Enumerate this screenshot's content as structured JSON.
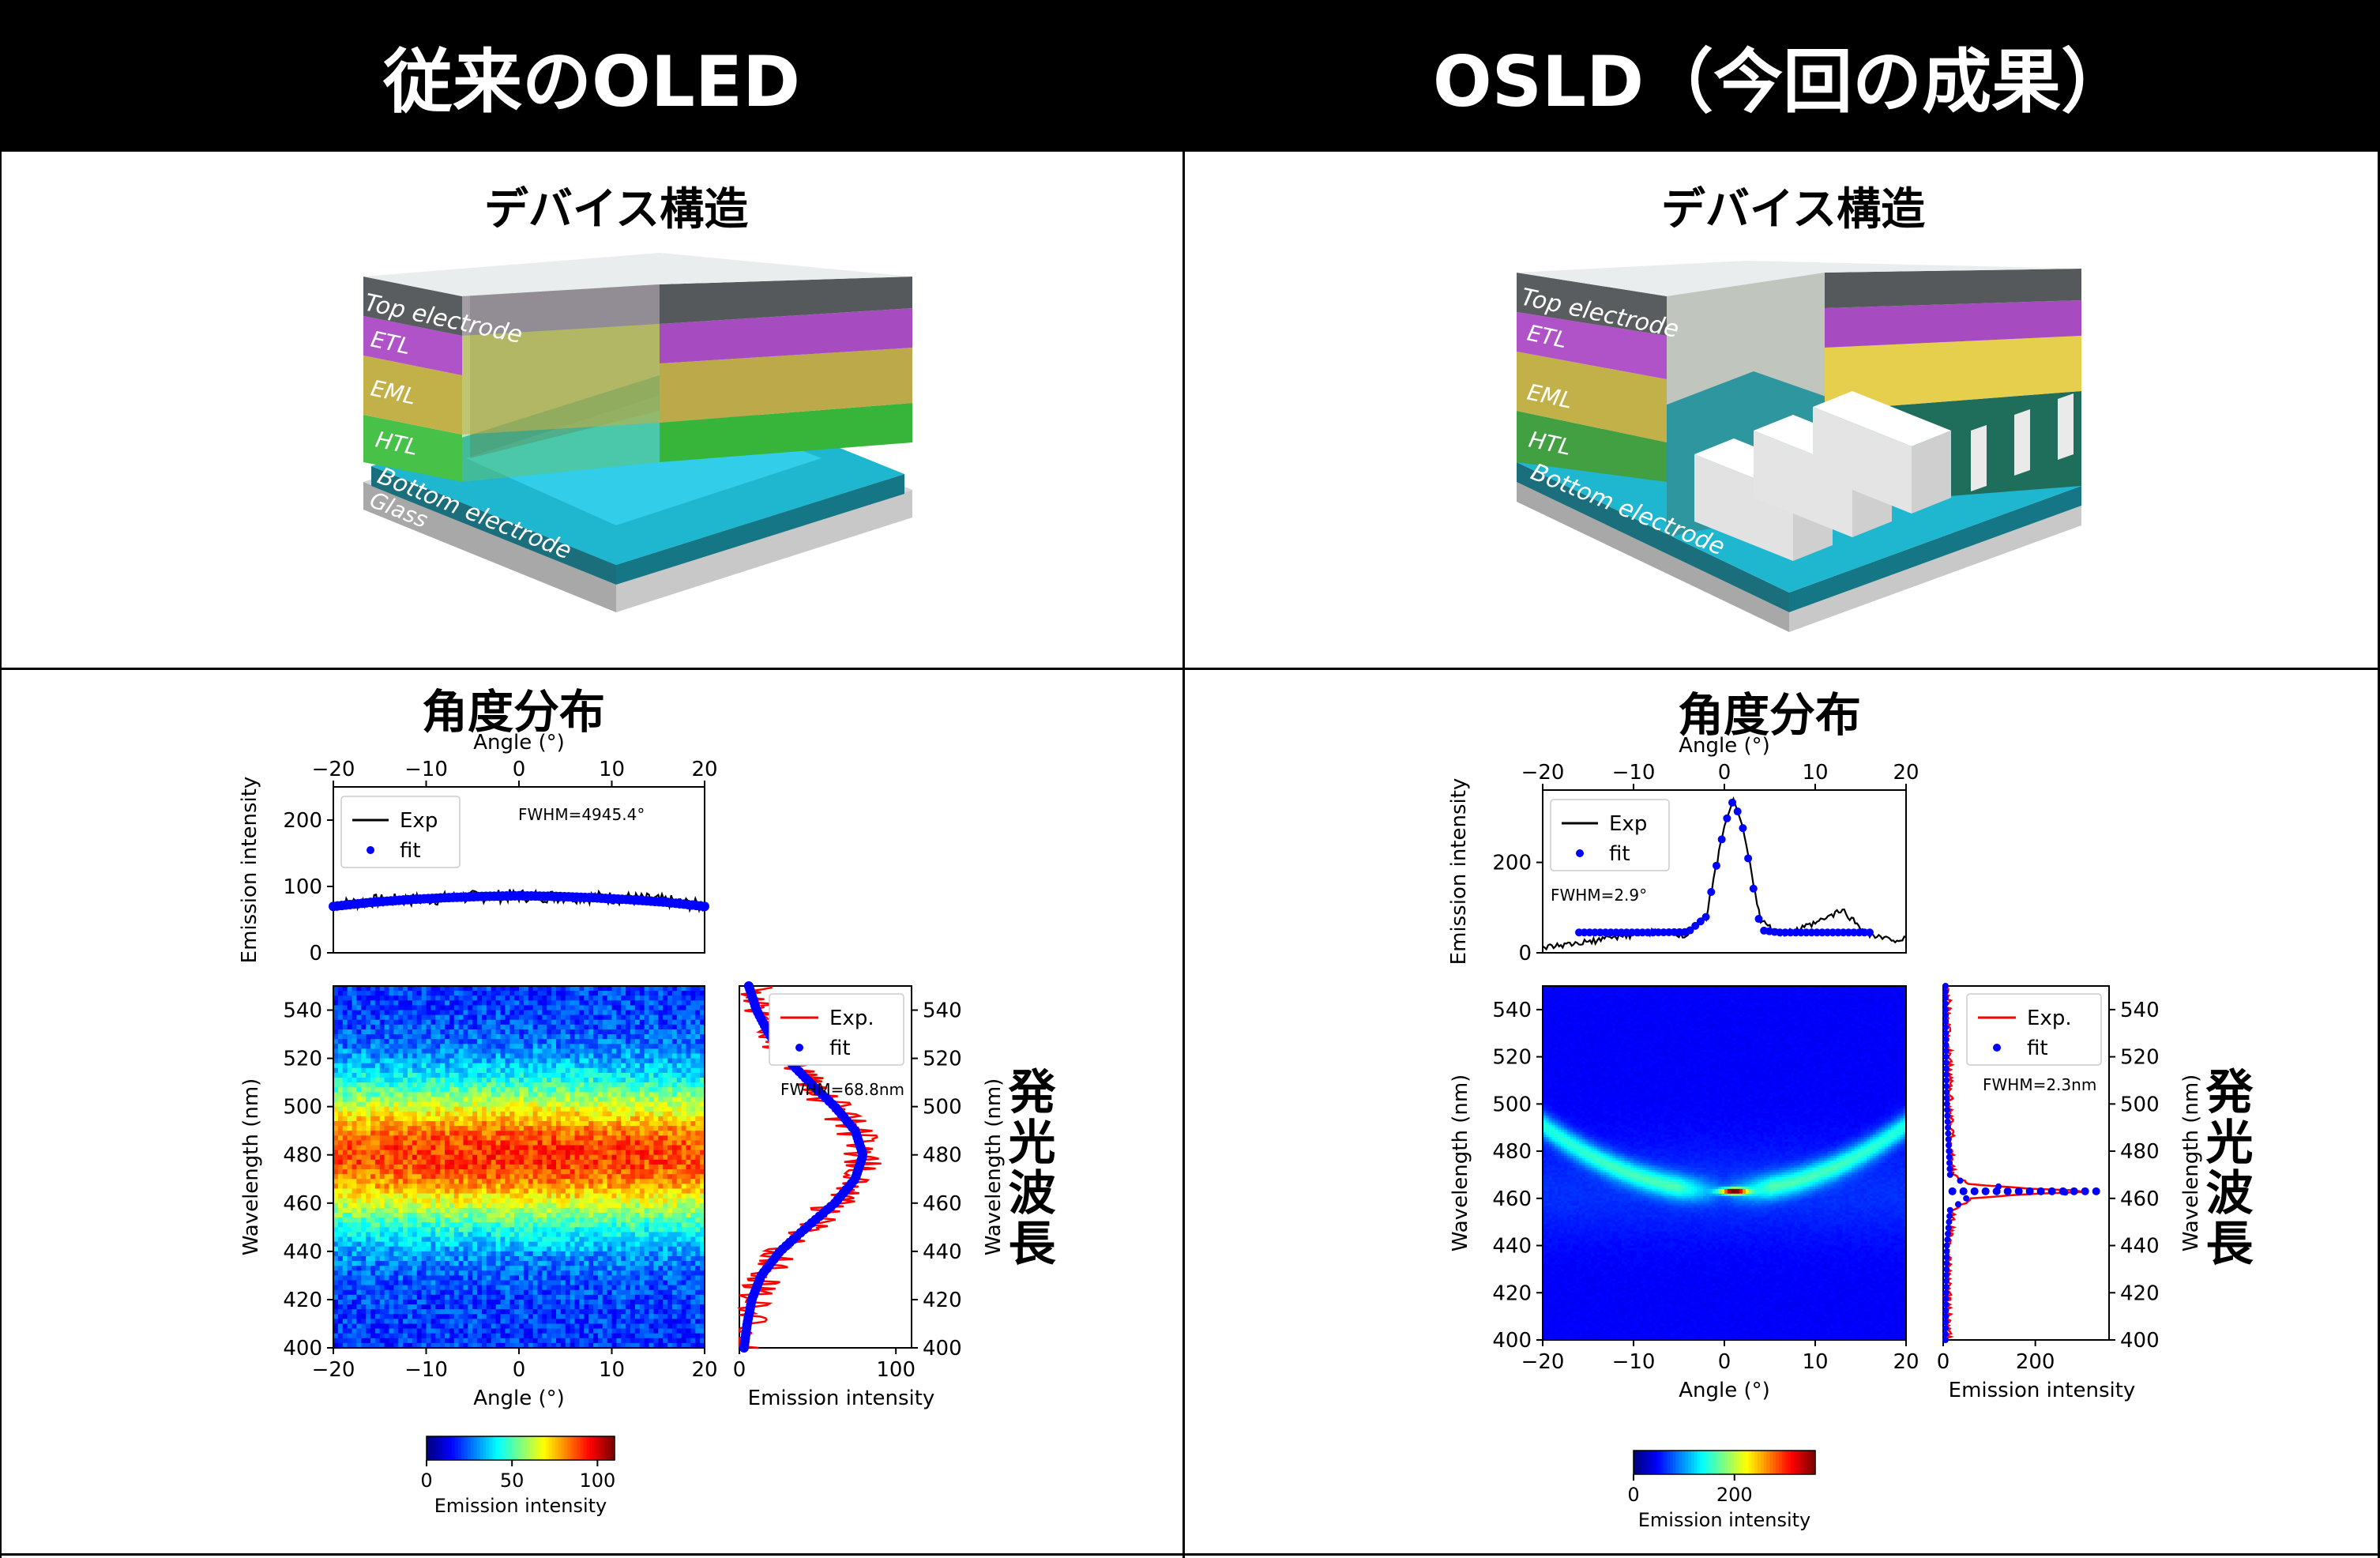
{
  "headers": {
    "left": "従来のOLED",
    "right": "OSLD（今回の成果）"
  },
  "sections": {
    "device": "デバイス構造",
    "angular": "角度分布",
    "emission": "発光波長"
  },
  "device_layers": {
    "oled": [
      "Top electrode",
      "ETL",
      "EML",
      "HTL",
      "Bottom electrode",
      "Glass"
    ],
    "osld": [
      "Top electrode",
      "ETL",
      "EML",
      "HTL",
      "Bottom electrode"
    ]
  },
  "colors": {
    "top": "#5a5d60",
    "etl": "#b052c8",
    "eml": "#c6b348",
    "htl": "#4cc34c",
    "bottom": "#1b6f7c",
    "glass": "#b9b9b9",
    "exp_angle": "#000000",
    "exp_spec": "#ff0000",
    "fit": "#0000ff"
  },
  "chart_data": [
    {
      "type": "line",
      "panel": "oled-angular",
      "xlabel": "Angle (°)",
      "ylabel": "Emission intensity",
      "xlim": [
        -20,
        20
      ],
      "ylim": [
        0,
        250
      ],
      "xticks": [
        "−20",
        "−10",
        "0",
        "10",
        "20"
      ],
      "yticks": [
        "0",
        "100",
        "200"
      ],
      "legend": [
        "Exp",
        "fit"
      ],
      "annotation": "FWHM=4945.4°",
      "series": [
        {
          "name": "Exp",
          "x": [
            -20,
            -16,
            -12,
            -8,
            -4,
            0,
            4,
            8,
            12,
            16,
            20
          ],
          "values": [
            72,
            78,
            80,
            82,
            85,
            86,
            85,
            84,
            82,
            78,
            70
          ]
        },
        {
          "name": "fit",
          "x": [
            -20,
            -16,
            -12,
            -8,
            -4,
            0,
            4,
            8,
            12,
            16,
            20
          ],
          "values": [
            70,
            76,
            80,
            83,
            85,
            86,
            85,
            83,
            80,
            76,
            70
          ]
        }
      ]
    },
    {
      "type": "heatmap",
      "panel": "oled-map",
      "xlabel": "Angle (°)",
      "ylabel": "Wavelength (nm)",
      "xlim": [
        -20,
        20
      ],
      "ylim": [
        400,
        550
      ],
      "xticks": [
        "−20",
        "−10",
        "0",
        "10",
        "20"
      ],
      "yticks": [
        "400",
        "420",
        "440",
        "460",
        "480",
        "500",
        "520",
        "540"
      ],
      "colorbar": {
        "label": "Emission intensity",
        "ticks": [
          "0",
          "50",
          "100"
        ],
        "range": [
          0,
          110
        ]
      },
      "peak_wavelength": 480
    },
    {
      "type": "line",
      "panel": "oled-spectrum",
      "xlabel": "Emission intensity",
      "ylabel": "Wavelength (nm)",
      "xlim": [
        0,
        110
      ],
      "ylim": [
        400,
        550
      ],
      "xticks": [
        "0",
        "100"
      ],
      "yticks": [
        "400",
        "420",
        "440",
        "460",
        "480",
        "500",
        "520",
        "540"
      ],
      "legend": [
        "Exp.",
        "fit"
      ],
      "annotation": "FWHM=68.8nm",
      "series": [
        {
          "name": "Exp.",
          "y": [
            400,
            410,
            420,
            430,
            440,
            450,
            460,
            470,
            480,
            490,
            500,
            510,
            520,
            530,
            540,
            550
          ],
          "values": [
            4,
            5,
            8,
            15,
            28,
            45,
            62,
            75,
            80,
            74,
            60,
            45,
            32,
            22,
            14,
            8
          ]
        },
        {
          "name": "fit",
          "y": [
            400,
            410,
            420,
            430,
            440,
            450,
            460,
            470,
            480,
            490,
            500,
            510,
            520,
            530,
            540,
            550
          ],
          "values": [
            3,
            5,
            8,
            14,
            26,
            43,
            61,
            74,
            79,
            74,
            61,
            45,
            30,
            19,
            11,
            6
          ]
        }
      ]
    },
    {
      "type": "line",
      "panel": "osld-angular",
      "xlabel": "Angle (°)",
      "ylabel": "Emission intensity",
      "xlim": [
        -20,
        20
      ],
      "ylim": [
        0,
        360
      ],
      "xticks": [
        "−20",
        "−10",
        "0",
        "10",
        "20"
      ],
      "yticks": [
        "0",
        "200"
      ],
      "legend": [
        "Exp",
        "fit"
      ],
      "annotation": "FWHM=2.9°",
      "series": [
        {
          "name": "Exp",
          "x": [
            -20,
            -16,
            -12,
            -8,
            -4,
            -2,
            0,
            1,
            2,
            4,
            6,
            8,
            10,
            12,
            13,
            14,
            16,
            18,
            20
          ],
          "values": [
            10,
            20,
            35,
            45,
            40,
            80,
            280,
            340,
            280,
            70,
            40,
            50,
            65,
            85,
            95,
            75,
            40,
            30,
            30
          ]
        },
        {
          "name": "fit",
          "x": [
            -16,
            -12,
            -8,
            -4,
            -2,
            0,
            1,
            2,
            4,
            6,
            8,
            12,
            16
          ],
          "values": [
            45,
            45,
            45,
            46,
            80,
            280,
            340,
            280,
            50,
            45,
            45,
            45,
            45
          ]
        }
      ]
    },
    {
      "type": "heatmap",
      "panel": "osld-map",
      "xlabel": "Angle (°)",
      "ylabel": "Wavelength (nm)",
      "xlim": [
        -20,
        20
      ],
      "ylim": [
        400,
        550
      ],
      "xticks": [
        "−20",
        "−10",
        "0",
        "10",
        "20"
      ],
      "yticks": [
        "400",
        "420",
        "440",
        "460",
        "480",
        "500",
        "520",
        "540"
      ],
      "colorbar": {
        "label": "Emission intensity",
        "ticks": [
          "0",
          "200"
        ],
        "range": [
          0,
          360
        ]
      },
      "peak": {
        "angle": 1,
        "wavelength": 463
      }
    },
    {
      "type": "line",
      "panel": "osld-spectrum",
      "xlabel": "Emission intensity",
      "ylabel": "Wavelength (nm)",
      "xlim": [
        0,
        360
      ],
      "ylim": [
        400,
        550
      ],
      "xticks": [
        "0",
        "200"
      ],
      "yticks": [
        "400",
        "420",
        "440",
        "460",
        "480",
        "500",
        "520",
        "540"
      ],
      "legend": [
        "Exp.",
        "fit"
      ],
      "annotation": "FWHM=2.3nm",
      "series": [
        {
          "name": "Exp.",
          "y": [
            400,
            440,
            455,
            460,
            462,
            463,
            464,
            466,
            470,
            500,
            540
          ],
          "values": [
            10,
            12,
            20,
            60,
            200,
            340,
            200,
            60,
            20,
            15,
            10
          ]
        },
        {
          "name": "fit",
          "y": [
            400,
            440,
            455,
            460,
            462,
            463,
            464,
            466,
            470,
            500,
            540
          ],
          "values": [
            5,
            8,
            15,
            50,
            190,
            340,
            190,
            50,
            15,
            8,
            5
          ]
        }
      ]
    }
  ]
}
